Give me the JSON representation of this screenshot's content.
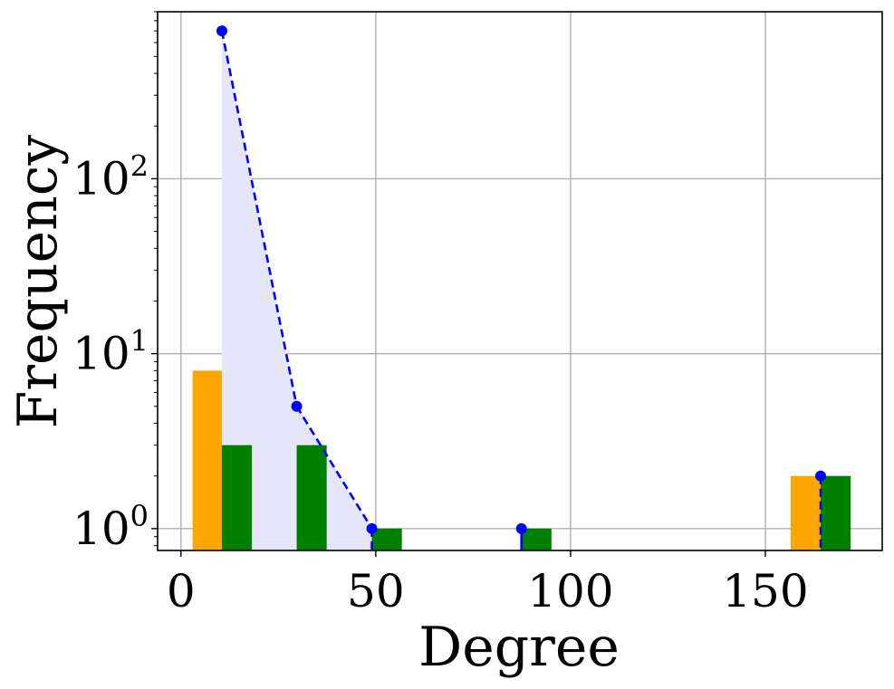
{
  "chart_data": {
    "type": "bar",
    "xlabel": "Degree",
    "ylabel": "Frequency",
    "xlim": [
      -6,
      180
    ],
    "ylim": [
      0.75,
      900
    ],
    "yscale": "log",
    "grid": true,
    "xticks": [
      0,
      50,
      100,
      150
    ],
    "yticks": [
      {
        "value": 1,
        "base": "10",
        "exp": "0"
      },
      {
        "value": 10,
        "base": "10",
        "exp": "1"
      },
      {
        "value": 100,
        "base": "10",
        "exp": "2"
      }
    ],
    "bar_series": [
      {
        "color": "#ffa500",
        "bars": [
          {
            "x0": 3,
            "x1": 10.5,
            "value": 8
          },
          {
            "x0": 156.5,
            "x1": 164.2,
            "value": 2
          }
        ]
      },
      {
        "color": "#008000",
        "bars": [
          {
            "x0": 10.5,
            "x1": 18.2,
            "value": 3
          },
          {
            "x0": 29.7,
            "x1": 37.4,
            "value": 3
          },
          {
            "x0": 49.0,
            "x1": 56.7,
            "value": 1
          },
          {
            "x0": 87.4,
            "x1": 95.1,
            "value": 1
          },
          {
            "x0": 164.2,
            "x1": 171.9,
            "value": 2
          }
        ]
      }
    ],
    "line_series": {
      "color": "#0000ff",
      "fill_color": "#e6e6fa",
      "style": "dashed",
      "points": [
        {
          "x": 10.5,
          "y": 700
        },
        {
          "x": 29.7,
          "y": 5
        },
        {
          "x": 49.0,
          "y": 1
        },
        {
          "x": 87.4,
          "y": 1
        },
        {
          "x": 164.2,
          "y": 2
        }
      ]
    }
  }
}
